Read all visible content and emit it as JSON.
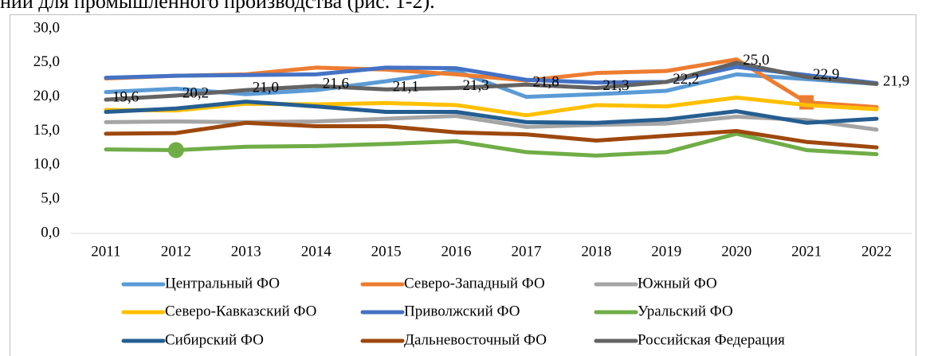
{
  "heading": "нии для промышленного производства (рис. 1-2).",
  "chart_data": {
    "type": "line",
    "categories": [
      "2011",
      "2012",
      "2013",
      "2014",
      "2015",
      "2016",
      "2017",
      "2018",
      "2019",
      "2020",
      "2021",
      "2022"
    ],
    "ylim": [
      0,
      30
    ],
    "yticks": [
      {
        "value": 0,
        "label": "0,0"
      },
      {
        "value": 5,
        "label": "5,0"
      },
      {
        "value": 10,
        "label": "10,0"
      },
      {
        "value": 15,
        "label": "15,0"
      },
      {
        "value": 20,
        "label": "20,0"
      },
      {
        "value": 25,
        "label": "25,0"
      },
      {
        "value": 30,
        "label": "30,0"
      }
    ],
    "grid": false,
    "legend": "bottom",
    "series": [
      {
        "name": "Центральный ФО",
        "color": "#5b9bd5",
        "values": [
          20.7,
          21.2,
          20.4,
          21.0,
          22.3,
          23.8,
          20.0,
          20.4,
          20.9,
          23.3,
          22.6,
          21.9
        ]
      },
      {
        "name": "Северо-Западный ФО",
        "color": "#ed7d31",
        "values": [
          22.7,
          23.1,
          23.3,
          24.3,
          24.0,
          23.3,
          22.4,
          23.5,
          23.8,
          25.5,
          19.2,
          18.5
        ],
        "marker": {
          "index": 10,
          "shape": "square"
        }
      },
      {
        "name": "Южный ФО",
        "color": "#a5a5a5",
        "values": [
          16.3,
          16.4,
          16.3,
          16.4,
          16.8,
          17.2,
          15.6,
          15.9,
          16.1,
          17.1,
          16.6,
          15.2
        ]
      },
      {
        "name": "Северо-Кавказский ФО",
        "color": "#ffc000",
        "values": [
          18.1,
          18.0,
          19.0,
          18.9,
          19.1,
          18.8,
          17.3,
          18.8,
          18.6,
          19.9,
          18.8,
          18.2
        ]
      },
      {
        "name": "Приволжский ФО",
        "color": "#4472c4",
        "values": [
          22.8,
          23.1,
          23.2,
          23.3,
          24.3,
          24.2,
          22.5,
          22.1,
          22.2,
          24.4,
          23.2,
          22.0
        ]
      },
      {
        "name": "Уральский ФО",
        "color": "#70ad47",
        "values": [
          12.3,
          12.2,
          12.7,
          12.8,
          13.1,
          13.5,
          11.9,
          11.4,
          11.9,
          14.6,
          12.2,
          11.6
        ],
        "marker": {
          "index": 1,
          "shape": "circle"
        }
      },
      {
        "name": "Сибирский ФО",
        "color": "#255e91",
        "values": [
          17.8,
          18.3,
          19.3,
          18.6,
          17.8,
          17.8,
          16.3,
          16.2,
          16.7,
          17.9,
          16.2,
          16.8
        ]
      },
      {
        "name": "Дальневосточный ФО",
        "color": "#9e480e",
        "values": [
          14.6,
          14.7,
          16.2,
          15.7,
          15.7,
          14.8,
          14.5,
          13.6,
          14.3,
          15.0,
          13.4,
          12.6
        ]
      },
      {
        "name": "Российская Федерация",
        "color": "#636363",
        "values": [
          19.6,
          20.2,
          21.0,
          21.6,
          21.1,
          21.3,
          21.8,
          21.3,
          22.2,
          25.0,
          22.9,
          21.9
        ],
        "value_labels": [
          "19,6",
          "20,2",
          "21,0",
          "21,6",
          "21,1",
          "21,3",
          "21,8",
          "21,3",
          "22,2",
          "25,0",
          "22,9",
          "21,9"
        ]
      }
    ]
  }
}
